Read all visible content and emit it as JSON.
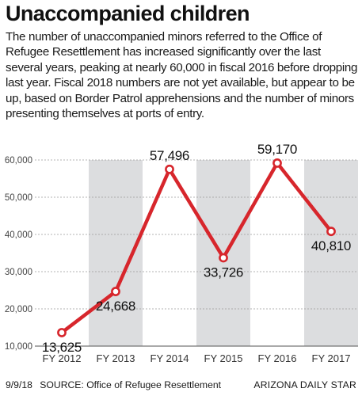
{
  "header": {
    "title": "Unaccompanied children",
    "description": "The number of unaccompanied minors referred to the Office of Refugee Resettlement has increased significantly over the last several years, peaking at nearly 60,000 in fiscal 2016 before dropping last year. Fiscal 2018 numbers are not yet available, but appear to be up, based on Border Patrol apprehensions and the number of minors presenting themselves at ports of entry."
  },
  "chart_data": {
    "type": "line",
    "categories": [
      "FY 2012",
      "FY 2013",
      "FY 2014",
      "FY 2015",
      "FY 2016",
      "FY 2017"
    ],
    "values": [
      13625,
      24668,
      57496,
      33726,
      59170,
      40810
    ],
    "data_labels": [
      "13,625",
      "24,668",
      "57,496",
      "33,726",
      "59,170",
      "40,810"
    ],
    "ylim": [
      10000,
      60000
    ],
    "yticks": [
      10000,
      20000,
      30000,
      40000,
      50000,
      60000
    ],
    "ytick_labels": [
      "10,000",
      "20,000",
      "30,000",
      "40,000",
      "50,000",
      "60,000"
    ],
    "grid": true,
    "alternating_bands": true,
    "line_color": "#d7262c",
    "band_color": "#dcdddf",
    "grid_color": "#9a9a9a"
  },
  "footer": {
    "date": "9/9/18",
    "source": "SOURCE: Office of Refugee Resettlement",
    "credit": "ARIZONA DAILY STAR"
  }
}
